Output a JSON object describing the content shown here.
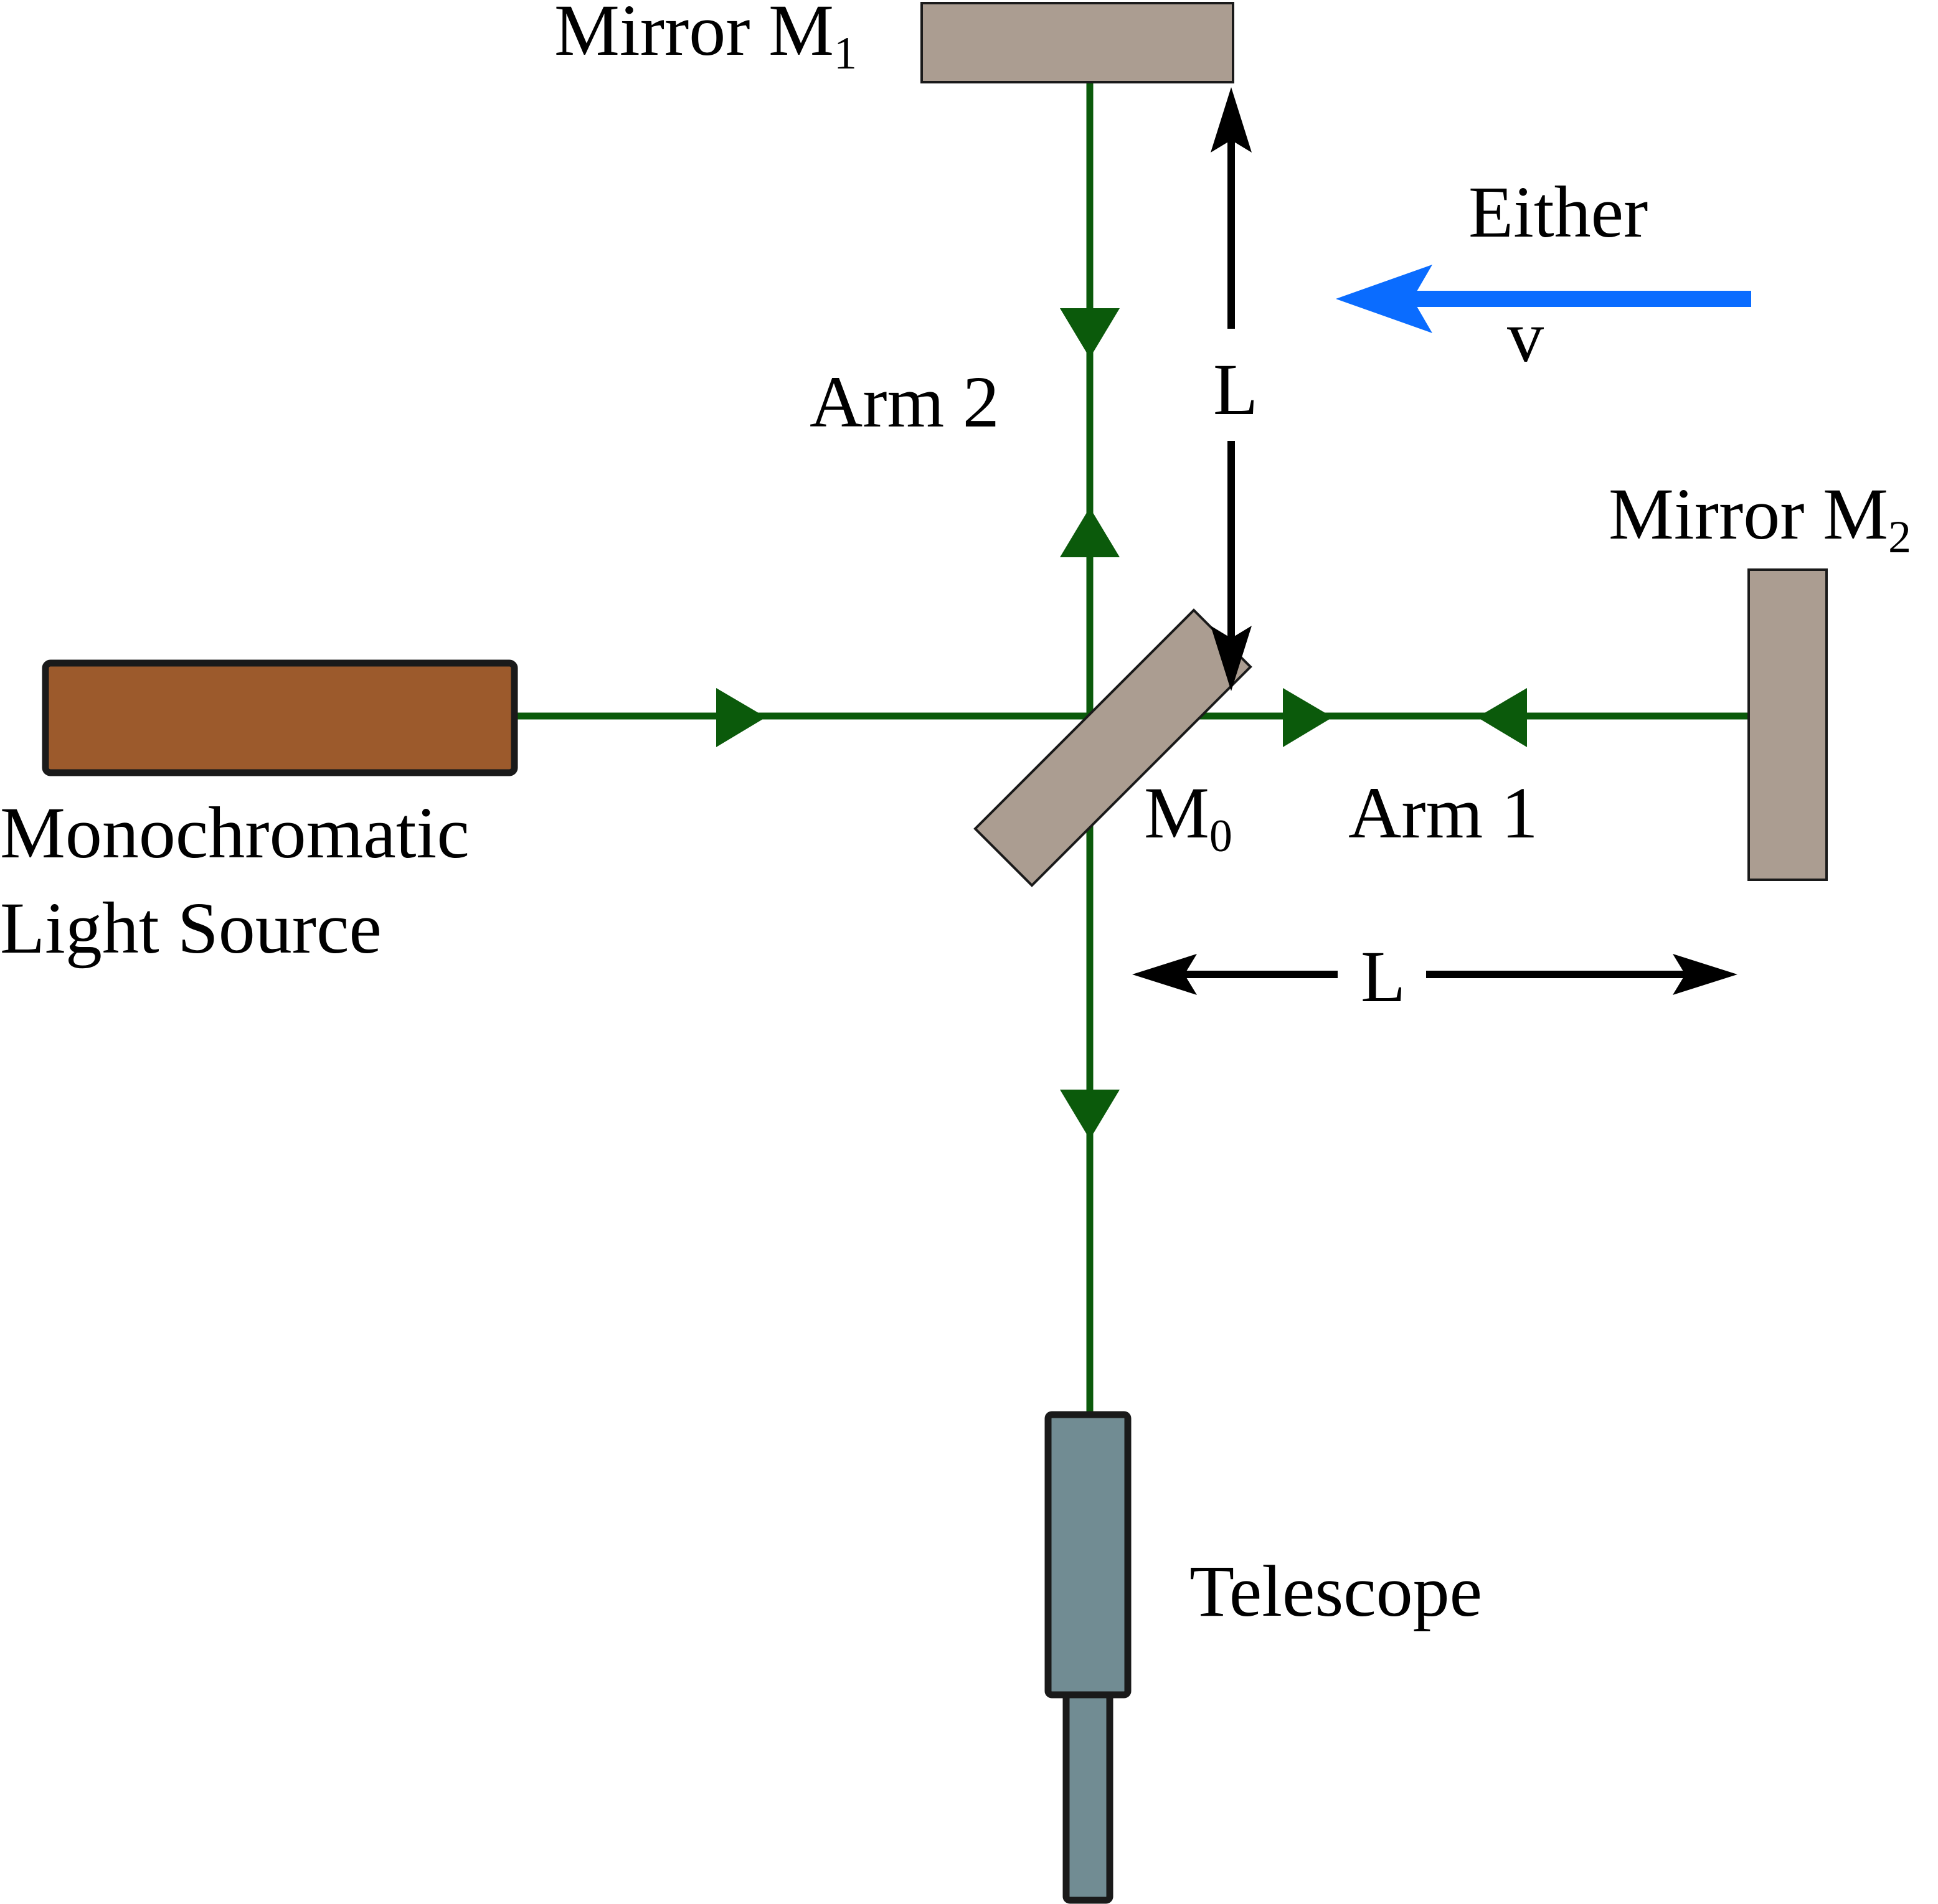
{
  "colors": {
    "beam": "#0b5a0b",
    "mirror": "#ab9d91",
    "source": "#9c5a2c",
    "telescope": "#718c93",
    "ether_arrow": "#0a6cff",
    "outline": "#1a1a1a",
    "dimension": "#000000"
  },
  "labels": {
    "mirror_m1_text": "Mirror M",
    "mirror_m1_sub": "1",
    "mirror_m2_text": "Mirror M",
    "mirror_m2_sub": "2",
    "beam_splitter_text": "M",
    "beam_splitter_sub": "0",
    "ether": "Either",
    "velocity": "v",
    "arm2": "Arm 2",
    "arm1": "Arm 1",
    "length_vertical": "L",
    "length_horizontal": "L",
    "source_line1": "Monochromatic",
    "source_line2": "Light Source",
    "telescope": "Telescope"
  }
}
